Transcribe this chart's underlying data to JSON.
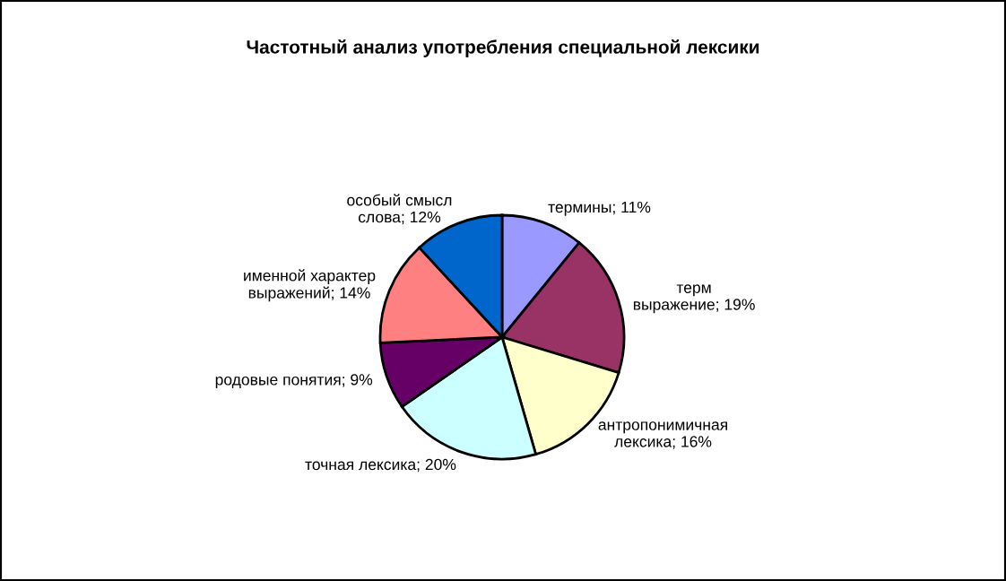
{
  "chart_data": {
    "type": "pie",
    "title": "Частотный анализ употребления специальной лексики",
    "categories": [
      "термины",
      "терм\nвыражение",
      "антропонимичная\nлексика",
      "точная лексика",
      "родовые понятия",
      "именной характер\nвыражений",
      "особый смысл\nслова"
    ],
    "values": [
      11,
      19,
      16,
      20,
      9,
      14,
      12
    ],
    "value_labels": [
      "11%",
      "19%",
      "16%",
      "20%",
      "9%",
      "14%",
      "12%"
    ],
    "colors": [
      "#9999ff",
      "#993366",
      "#ffffcc",
      "#ccffff",
      "#660066",
      "#ff8080",
      "#0066cc"
    ]
  }
}
